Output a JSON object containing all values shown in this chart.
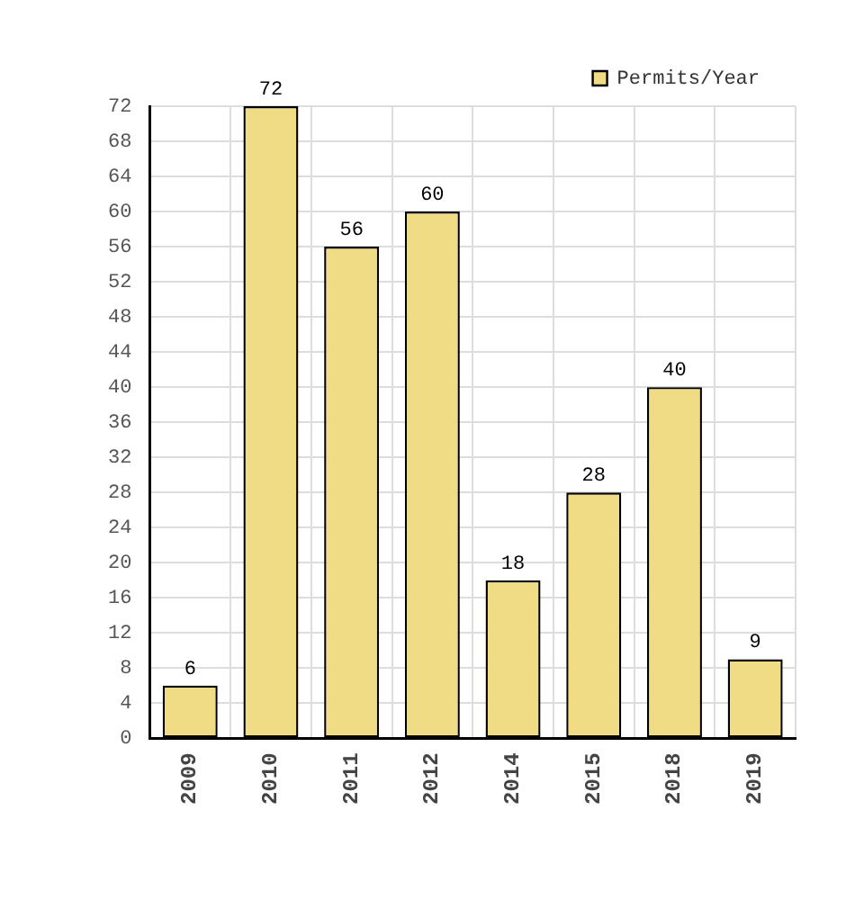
{
  "chart_data": {
    "type": "bar",
    "categories": [
      "2009",
      "2010",
      "2011",
      "2012",
      "2014",
      "2015",
      "2018",
      "2019"
    ],
    "series": [
      {
        "name": "Permits/Year",
        "color": "#efdc84",
        "values": [
          6,
          72,
          56,
          60,
          18,
          28,
          40,
          9
        ]
      }
    ],
    "ylim": [
      0,
      72
    ],
    "yticks": [
      0,
      4,
      8,
      12,
      16,
      20,
      24,
      28,
      32,
      36,
      40,
      44,
      48,
      52,
      56,
      60,
      64,
      68,
      72
    ],
    "grid": true,
    "legend": "top right",
    "data_labels": true
  }
}
